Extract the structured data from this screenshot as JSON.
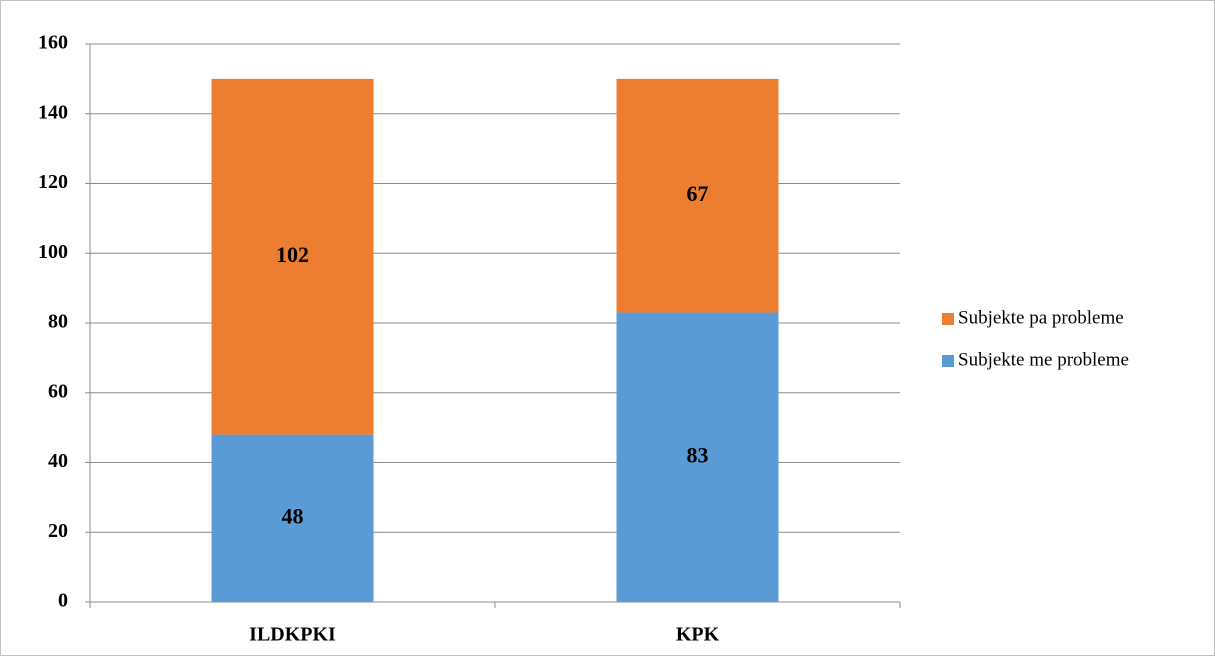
{
  "chart_data": {
    "type": "stacked_bar",
    "categories": [
      "ILDKPKI",
      "KPK"
    ],
    "series": [
      {
        "name": "Subjekte me probleme",
        "color": "#5b9bd5",
        "values": [
          48,
          83
        ]
      },
      {
        "name": "Subjekte pa probleme",
        "color": "#ed7d31",
        "values": [
          102,
          67
        ]
      }
    ],
    "ylim": [
      0,
      160
    ],
    "yticks": [
      0,
      20,
      40,
      60,
      80,
      100,
      120,
      140,
      160
    ],
    "grid": true,
    "legend": "right"
  }
}
